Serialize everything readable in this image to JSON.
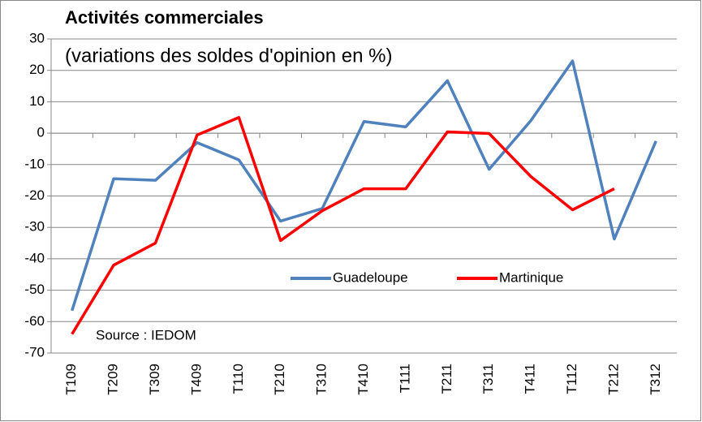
{
  "chart_data": {
    "type": "line",
    "title": "Activités commerciales",
    "subtitle": "(variations des soldes d'opinion en %)",
    "annotation": "Source : IEDOM",
    "categories": [
      "T109",
      "T209",
      "T309",
      "T409",
      "T110",
      "T210",
      "T310",
      "T410",
      "T111",
      "T211",
      "T311",
      "T411",
      "T112",
      "T212",
      "T312"
    ],
    "series": [
      {
        "name": "Guadeloupe",
        "color": "#4f81bd",
        "values": [
          -56.5,
          -14.5,
          -15,
          -3,
          -8.5,
          -28,
          -24,
          3.7,
          2,
          16.7,
          -11.5,
          4,
          23,
          -33.7,
          -2.5
        ]
      },
      {
        "name": "Martinique",
        "color": "#ff0000",
        "values": [
          -64,
          -42,
          -35,
          -0.6,
          5,
          -34.2,
          -24.7,
          -17.7,
          -17.7,
          0.4,
          -0.1,
          -13.8,
          -24.4,
          -17.7,
          null
        ]
      }
    ],
    "ylim": [
      -70,
      30
    ],
    "yticks": [
      -70,
      -60,
      -50,
      -40,
      -30,
      -20,
      -10,
      0,
      10,
      20,
      30
    ],
    "grid": true
  }
}
